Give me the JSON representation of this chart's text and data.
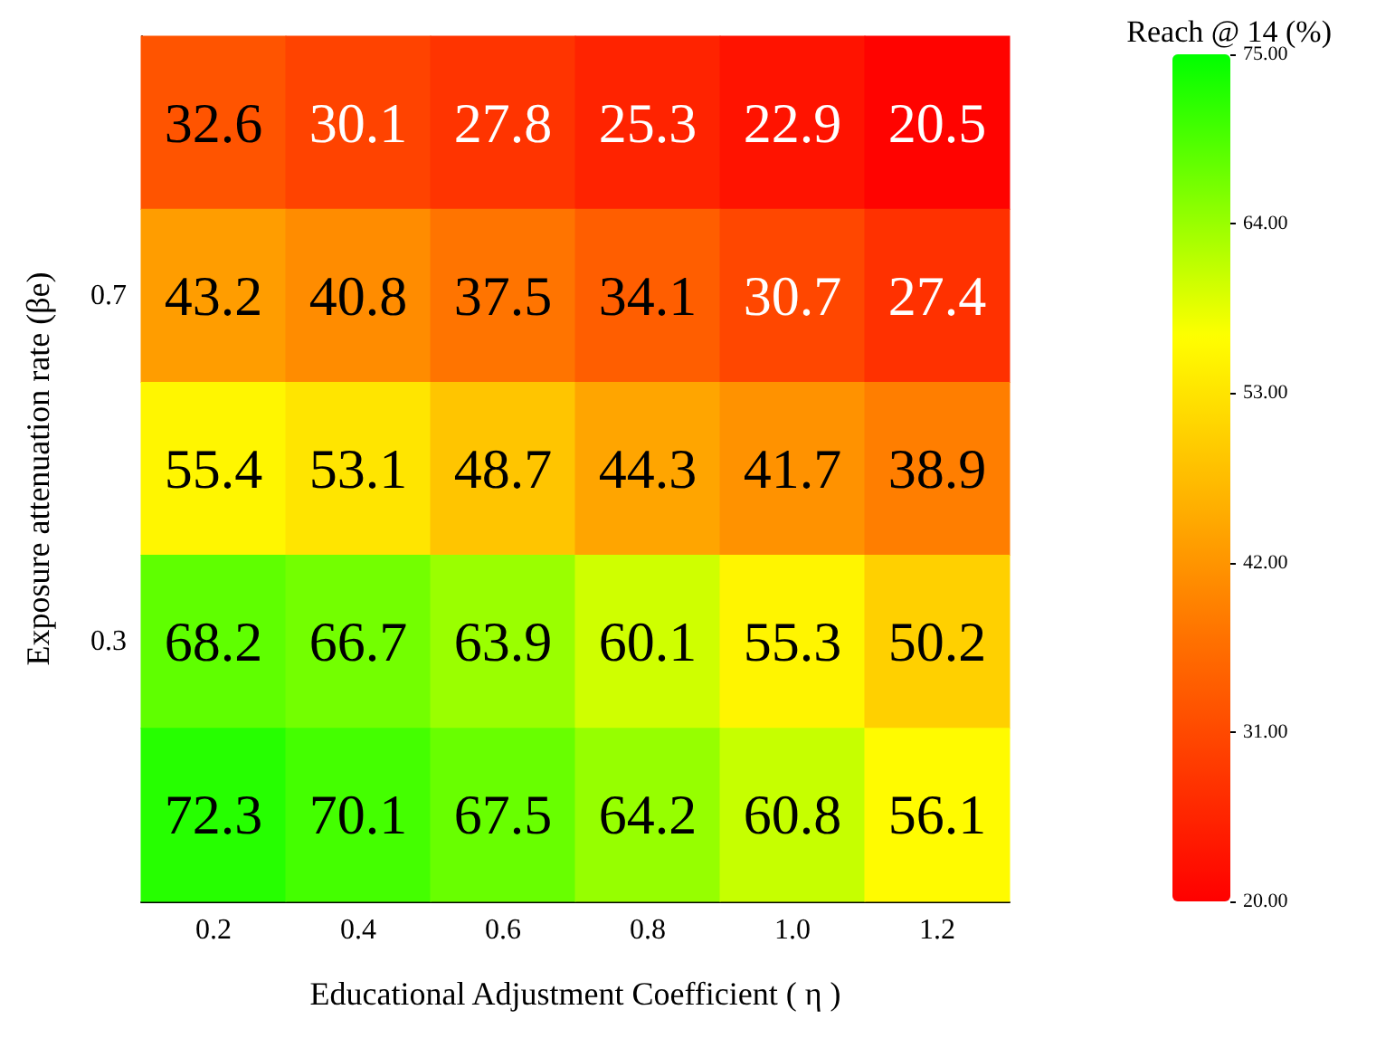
{
  "chart_data": {
    "type": "heatmap",
    "xlabel": "Educational Adjustment Coefficient ( η )",
    "ylabel": "Exposure attenuation rate (βe)",
    "clabel": "Reach @ 14 (%)",
    "categories": [
      "0.2",
      "0.4",
      "0.6",
      "0.8",
      "1.0",
      "1.2"
    ],
    "y_categories": [
      null,
      "0.7",
      null,
      "0.3",
      null
    ],
    "cells": [
      [
        32.6,
        30.1,
        27.8,
        25.3,
        22.9,
        20.5
      ],
      [
        43.2,
        40.8,
        37.5,
        34.1,
        30.7,
        27.4
      ],
      [
        55.4,
        53.1,
        48.7,
        44.3,
        41.7,
        38.9
      ],
      [
        68.2,
        66.7,
        63.9,
        60.1,
        55.3,
        50.2
      ],
      [
        72.3,
        70.1,
        67.5,
        64.2,
        60.8,
        56.1
      ]
    ],
    "data_labels": true,
    "clim": [
      20,
      75
    ],
    "cticks": [
      {
        "value": 20,
        "label": "20.00"
      },
      {
        "value": 31,
        "label": "31.00"
      },
      {
        "value": 42,
        "label": "42.00"
      },
      {
        "value": 53,
        "label": "53.00"
      },
      {
        "value": 64,
        "label": "64.00"
      },
      {
        "value": 75,
        "label": "75.00"
      }
    ]
  }
}
